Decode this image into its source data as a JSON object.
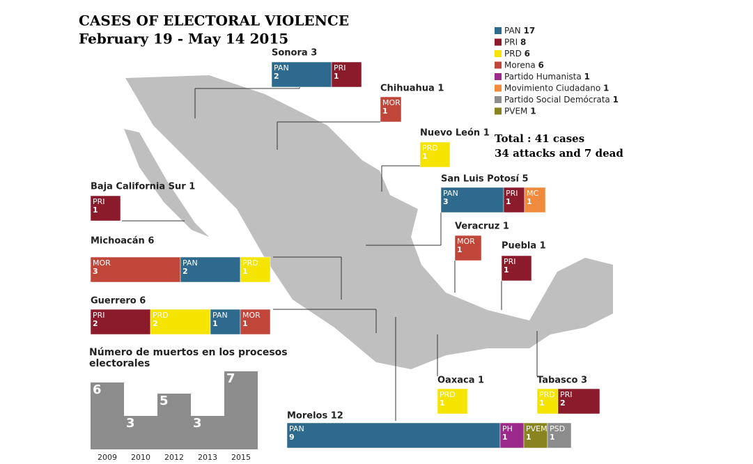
{
  "title": "CASES OF ELECTORAL VIOLENCE",
  "subtitle": "February 19 - May 14 2015",
  "legend": [
    {
      "name": "PAN",
      "count": 17,
      "color": "#2e6a8e"
    },
    {
      "name": "PRI",
      "count": 8,
      "color": "#8b1a2b"
    },
    {
      "name": "PRD",
      "count": 6,
      "color": "#f5e400"
    },
    {
      "name": "Morena",
      "count": 6,
      "color": "#c0463a"
    },
    {
      "name": "Partido Humanista",
      "count": 1,
      "color": "#9b2a8c"
    },
    {
      "name": "Movimiento Ciudadano",
      "count": 1,
      "color": "#f08a3c"
    },
    {
      "name": "Partido Social Demócrata",
      "count": 1,
      "color": "#8c8c8c"
    },
    {
      "name": "PVEM",
      "count": 1,
      "color": "#8a8420"
    }
  ],
  "total": "Total : 41 cases",
  "summary": "34 attacks and 7 dead",
  "states": [
    {
      "name": "Sonora 3",
      "segments": [
        {
          "party": "PAN",
          "value": 2,
          "color": "#2e6a8e"
        },
        {
          "party": "PRI",
          "value": 1,
          "color": "#8b1a2b"
        }
      ]
    },
    {
      "name": "Chihuahua 1",
      "segments": [
        {
          "party": "MOR",
          "value": 1,
          "color": "#c0463a"
        }
      ]
    },
    {
      "name": "Nuevo León 1",
      "segments": [
        {
          "party": "PRD",
          "value": 1,
          "color": "#f5e400"
        }
      ]
    },
    {
      "name": "Baja California Sur 1",
      "segments": [
        {
          "party": "PRI",
          "value": 1,
          "color": "#8b1a2b"
        }
      ]
    },
    {
      "name": "San Luis Potosí 5",
      "segments": [
        {
          "party": "PAN",
          "value": 3,
          "color": "#2e6a8e"
        },
        {
          "party": "PRI",
          "value": 1,
          "color": "#8b1a2b"
        },
        {
          "party": "MC",
          "value": 1,
          "color": "#f08a3c"
        }
      ]
    },
    {
      "name": "Veracruz 1",
      "segments": [
        {
          "party": "MOR",
          "value": 1,
          "color": "#c0463a"
        }
      ]
    },
    {
      "name": "Puebla 1",
      "segments": [
        {
          "party": "PRI",
          "value": 1,
          "color": "#8b1a2b"
        }
      ]
    },
    {
      "name": "Michoacán 6",
      "segments": [
        {
          "party": "MOR",
          "value": 3,
          "color": "#c0463a"
        },
        {
          "party": "PAN",
          "value": 2,
          "color": "#2e6a8e"
        },
        {
          "party": "PRD",
          "value": 1,
          "color": "#f5e400"
        }
      ]
    },
    {
      "name": "Guerrero 6",
      "segments": [
        {
          "party": "PRI",
          "value": 2,
          "color": "#8b1a2b"
        },
        {
          "party": "PRD",
          "value": 2,
          "color": "#f5e400"
        },
        {
          "party": "PAN",
          "value": 1,
          "color": "#2e6a8e"
        },
        {
          "party": "MOR",
          "value": 1,
          "color": "#c0463a"
        }
      ]
    },
    {
      "name": "Oaxaca 1",
      "segments": [
        {
          "party": "PRD",
          "value": 1,
          "color": "#f5e400"
        }
      ]
    },
    {
      "name": "Tabasco 3",
      "segments": [
        {
          "party": "PRD",
          "value": 1,
          "color": "#f5e400"
        },
        {
          "party": "PRI",
          "value": 2,
          "color": "#8b1a2b"
        }
      ]
    },
    {
      "name": "Morelos 12",
      "segments": [
        {
          "party": "PAN",
          "value": 9,
          "color": "#2e6a8e"
        },
        {
          "party": "PH",
          "value": 1,
          "color": "#9b2a8c"
        },
        {
          "party": "PVEM",
          "value": 1,
          "color": "#8a8420"
        },
        {
          "party": "PSD",
          "value": 1,
          "color": "#8c8c8c"
        }
      ]
    }
  ],
  "chart_data": {
    "type": "bar",
    "title": "Número de muertos en los procesos electorales",
    "categories": [
      "2009",
      "2010",
      "2012",
      "2013",
      "2015"
    ],
    "values": [
      6,
      3,
      5,
      3,
      7
    ],
    "color": "#8c8c8c"
  }
}
